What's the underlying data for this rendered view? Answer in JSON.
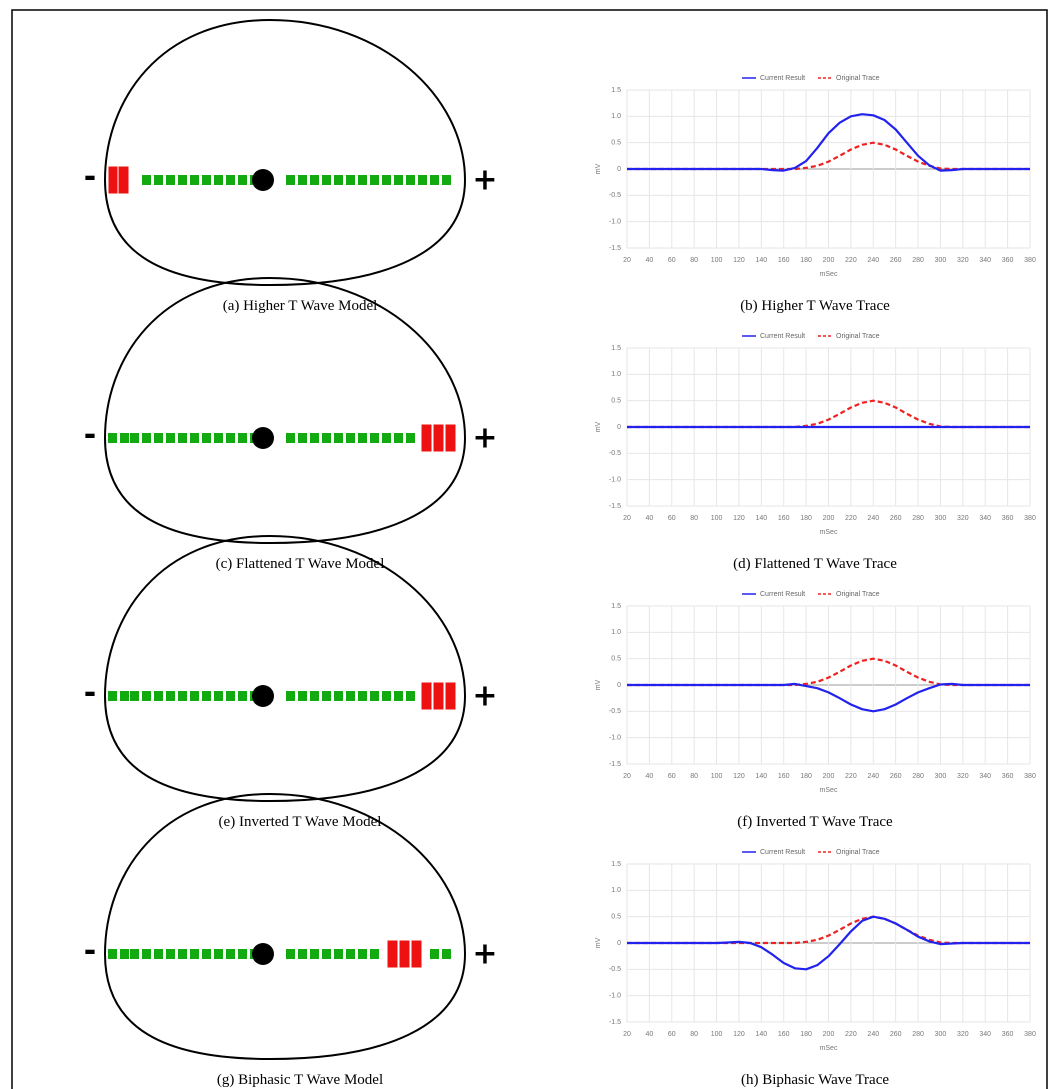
{
  "models": [
    {
      "caption": "(a) Higher T Wave Model",
      "minus": "-",
      "plus": "+"
    },
    {
      "caption": "(c) Flattened T Wave Model",
      "minus": "-",
      "plus": "+"
    },
    {
      "caption": "(e) Inverted T Wave Model",
      "minus": "-",
      "plus": "+"
    },
    {
      "caption": "(g) Biphasic T Wave Model",
      "minus": "-",
      "plus": "+"
    }
  ],
  "chart_data": [
    {
      "type": "line",
      "caption": "(b) Higher T Wave Trace",
      "xlabel": "mSec",
      "ylabel": "mV",
      "grid": true,
      "x": [
        20,
        30,
        40,
        50,
        60,
        70,
        80,
        90,
        100,
        110,
        120,
        130,
        140,
        150,
        160,
        170,
        180,
        190,
        200,
        210,
        220,
        230,
        240,
        250,
        260,
        270,
        280,
        290,
        300,
        310,
        320,
        330,
        340,
        350,
        360,
        370,
        380
      ],
      "xlim": [
        20,
        380
      ],
      "xticks": [
        20,
        40,
        60,
        80,
        100,
        120,
        140,
        160,
        180,
        200,
        220,
        240,
        260,
        280,
        300,
        320,
        340,
        360,
        380
      ],
      "ylim": [
        -1.5,
        1.5
      ],
      "yticks": [
        -1.5,
        {
          "value": -1,
          "label": "-1.0"
        },
        -0.5,
        0,
        0.5,
        {
          "value": 1,
          "label": "1.0"
        },
        1.5
      ],
      "series": [
        {
          "name": "Current Result",
          "color": "#2222ee",
          "dashed": false,
          "values": [
            0,
            0,
            0,
            0,
            0,
            0,
            0,
            0,
            0,
            0,
            0,
            0,
            0,
            -0.02,
            -0.03,
            0.02,
            0.15,
            0.4,
            0.68,
            0.88,
            1.0,
            1.04,
            1.02,
            0.93,
            0.75,
            0.5,
            0.25,
            0.07,
            -0.03,
            -0.02,
            0,
            0,
            0,
            0,
            0,
            0,
            0
          ]
        },
        {
          "name": "Original Trace",
          "color": "#ee2222",
          "dashed": true,
          "values": [
            0,
            0,
            0,
            0,
            0,
            0,
            0,
            0,
            0,
            0,
            0,
            0,
            0,
            0,
            0,
            0,
            0.02,
            0.06,
            0.14,
            0.25,
            0.37,
            0.46,
            0.5,
            0.46,
            0.37,
            0.25,
            0.14,
            0.06,
            0.01,
            0,
            0,
            0,
            0,
            0,
            0,
            0,
            0
          ]
        }
      ]
    },
    {
      "type": "line",
      "caption": "(d) Flattened T Wave Trace",
      "xlabel": "mSec",
      "ylabel": "mV",
      "grid": true,
      "x": [
        20,
        30,
        40,
        50,
        60,
        70,
        80,
        90,
        100,
        110,
        120,
        130,
        140,
        150,
        160,
        170,
        180,
        190,
        200,
        210,
        220,
        230,
        240,
        250,
        260,
        270,
        280,
        290,
        300,
        310,
        320,
        330,
        340,
        350,
        360,
        370,
        380
      ],
      "xlim": [
        20,
        380
      ],
      "xticks": [
        20,
        40,
        60,
        80,
        100,
        120,
        140,
        160,
        180,
        200,
        220,
        240,
        260,
        280,
        300,
        320,
        340,
        360,
        380
      ],
      "ylim": [
        -1.5,
        1.5
      ],
      "yticks": [
        -1.5,
        {
          "value": -1,
          "label": "-1.0"
        },
        -0.5,
        0,
        0.5,
        {
          "value": 1,
          "label": "1.0"
        },
        1.5
      ],
      "series": [
        {
          "name": "Current Result",
          "color": "#2222ee",
          "dashed": false,
          "values": [
            0,
            0,
            0,
            0,
            0,
            0,
            0,
            0,
            0,
            0,
            0,
            0,
            0,
            0,
            0,
            0,
            0,
            0,
            0,
            0,
            0,
            0,
            0,
            0,
            0,
            0,
            0,
            0,
            0,
            0,
            0,
            0,
            0,
            0,
            0,
            0,
            0
          ]
        },
        {
          "name": "Original Trace",
          "color": "#ee2222",
          "dashed": true,
          "values": [
            0,
            0,
            0,
            0,
            0,
            0,
            0,
            0,
            0,
            0,
            0,
            0,
            0,
            0,
            0,
            0,
            0.02,
            0.06,
            0.14,
            0.25,
            0.37,
            0.46,
            0.5,
            0.46,
            0.37,
            0.25,
            0.14,
            0.06,
            0.01,
            0,
            0,
            0,
            0,
            0,
            0,
            0,
            0
          ]
        }
      ]
    },
    {
      "type": "line",
      "caption": "(f) Inverted T Wave Trace",
      "xlabel": "mSec",
      "ylabel": "mV",
      "grid": true,
      "x": [
        20,
        30,
        40,
        50,
        60,
        70,
        80,
        90,
        100,
        110,
        120,
        130,
        140,
        150,
        160,
        170,
        180,
        190,
        200,
        210,
        220,
        230,
        240,
        250,
        260,
        270,
        280,
        290,
        300,
        310,
        320,
        330,
        340,
        350,
        360,
        370,
        380
      ],
      "xlim": [
        20,
        380
      ],
      "xticks": [
        20,
        40,
        60,
        80,
        100,
        120,
        140,
        160,
        180,
        200,
        220,
        240,
        260,
        280,
        300,
        320,
        340,
        360,
        380
      ],
      "ylim": [
        -1.5,
        1.5
      ],
      "yticks": [
        -1.5,
        {
          "value": -1,
          "label": "-1.0"
        },
        -0.5,
        0,
        0.5,
        {
          "value": 1,
          "label": "1.0"
        },
        1.5
      ],
      "series": [
        {
          "name": "Current Result",
          "color": "#2222ee",
          "dashed": false,
          "values": [
            0,
            0,
            0,
            0,
            0,
            0,
            0,
            0,
            0,
            0,
            0,
            0,
            0,
            0,
            0,
            0.02,
            -0.02,
            -0.06,
            -0.14,
            -0.25,
            -0.37,
            -0.46,
            -0.5,
            -0.46,
            -0.37,
            -0.25,
            -0.14,
            -0.06,
            0.01,
            0.02,
            0,
            0,
            0,
            0,
            0,
            0,
            0
          ]
        },
        {
          "name": "Original Trace",
          "color": "#ee2222",
          "dashed": true,
          "values": [
            0,
            0,
            0,
            0,
            0,
            0,
            0,
            0,
            0,
            0,
            0,
            0,
            0,
            0,
            0,
            0,
            0.02,
            0.06,
            0.14,
            0.25,
            0.37,
            0.46,
            0.5,
            0.46,
            0.37,
            0.25,
            0.14,
            0.06,
            0.01,
            0,
            0,
            0,
            0,
            0,
            0,
            0,
            0
          ]
        }
      ]
    },
    {
      "type": "line",
      "caption": "(h) Biphasic Wave Trace",
      "xlabel": "mSec",
      "ylabel": "mV",
      "grid": true,
      "x": [
        20,
        30,
        40,
        50,
        60,
        70,
        80,
        90,
        100,
        110,
        120,
        130,
        140,
        150,
        160,
        170,
        180,
        190,
        200,
        210,
        220,
        230,
        240,
        250,
        260,
        270,
        280,
        290,
        300,
        310,
        320,
        330,
        340,
        350,
        360,
        370,
        380
      ],
      "xlim": [
        20,
        380
      ],
      "xticks": [
        20,
        40,
        60,
        80,
        100,
        120,
        140,
        160,
        180,
        200,
        220,
        240,
        260,
        280,
        300,
        320,
        340,
        360,
        380
      ],
      "ylim": [
        -1.5,
        1.5
      ],
      "yticks": [
        -1.5,
        {
          "value": -1,
          "label": "-1.0"
        },
        -0.5,
        0,
        0.5,
        {
          "value": 1,
          "label": "1.0"
        },
        1.5
      ],
      "series": [
        {
          "name": "Current Result",
          "color": "#2222ee",
          "dashed": false,
          "values": [
            0,
            0,
            0,
            0,
            0,
            0,
            0,
            0,
            0,
            0.01,
            0.02,
            0,
            -0.08,
            -0.22,
            -0.38,
            -0.48,
            -0.5,
            -0.42,
            -0.25,
            -0.02,
            0.22,
            0.42,
            0.5,
            0.46,
            0.37,
            0.25,
            0.12,
            0.03,
            -0.02,
            -0.01,
            0,
            0,
            0,
            0,
            0,
            0,
            0
          ]
        },
        {
          "name": "Original Trace",
          "color": "#ee2222",
          "dashed": true,
          "values": [
            0,
            0,
            0,
            0,
            0,
            0,
            0,
            0,
            0,
            0,
            0,
            0,
            0,
            0,
            0,
            0,
            0.02,
            0.06,
            0.14,
            0.25,
            0.37,
            0.46,
            0.5,
            0.46,
            0.37,
            0.25,
            0.14,
            0.06,
            0.01,
            0,
            0,
            0,
            0,
            0,
            0,
            0,
            0
          ]
        }
      ]
    }
  ]
}
